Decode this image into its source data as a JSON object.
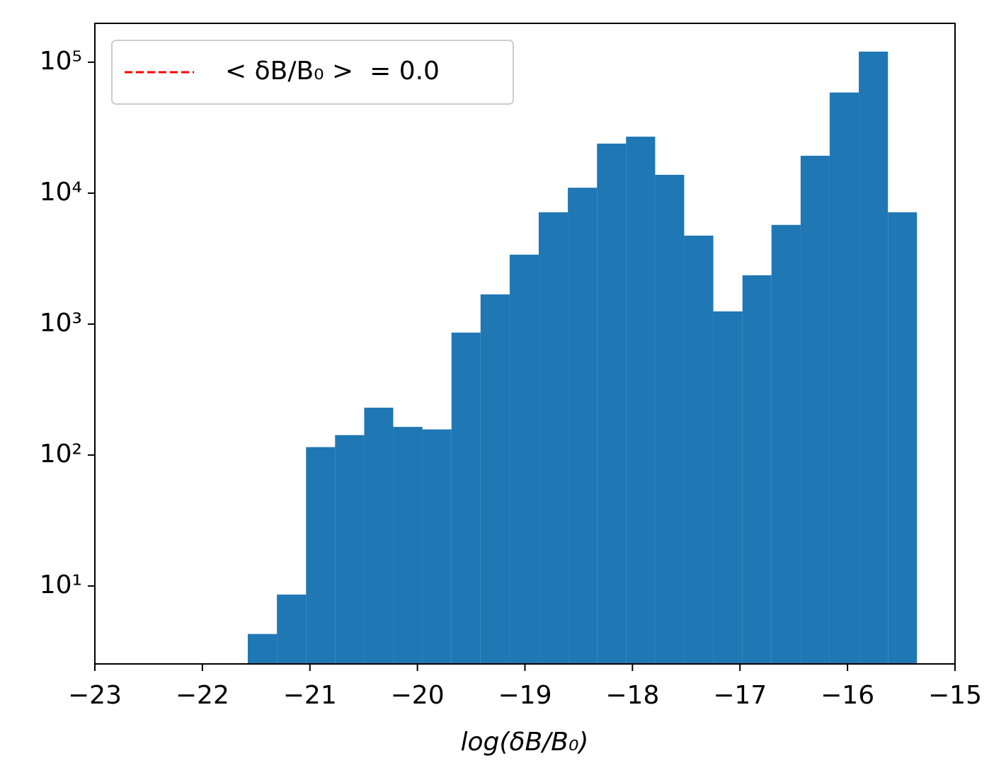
{
  "chart_data": {
    "type": "histogram",
    "x_label": "log(δB/B₀)",
    "bins": [
      -21.578,
      -21.307,
      -21.036,
      -20.766,
      -20.495,
      -20.225,
      -19.954,
      -19.683,
      -19.413,
      -19.142,
      -18.872,
      -18.601,
      -18.33,
      -18.06,
      -17.789,
      -17.519,
      -17.248,
      -16.977,
      -16.707,
      -16.436,
      -16.166,
      -15.895,
      -15.624,
      -15.354
    ],
    "values": [
      4.3,
      8.6,
      115,
      142,
      230,
      164,
      157,
      861,
      1686,
      3390,
      7140,
      11000,
      23900,
      27000,
      13800,
      4740,
      1250,
      2360,
      5720,
      19300,
      58700,
      120500,
      7140
    ],
    "color": "#1f77b4",
    "xlim": [
      -23,
      -15
    ],
    "xticks": [
      {
        "value": -23,
        "label": "−23"
      },
      {
        "value": -22,
        "label": "−22"
      },
      {
        "value": -21,
        "label": "−21"
      },
      {
        "value": -20,
        "label": "−20"
      },
      {
        "value": -19,
        "label": "−19"
      },
      {
        "value": -18,
        "label": "−18"
      },
      {
        "value": -17,
        "label": "−17"
      },
      {
        "value": -16,
        "label": "−16"
      },
      {
        "value": -15,
        "label": "−15"
      }
    ],
    "ylim": [
      2.54,
      198000
    ],
    "yscale": "log",
    "yticks": [
      {
        "value": 10,
        "label": "10¹"
      },
      {
        "value": 100,
        "label": "10²"
      },
      {
        "value": 1000,
        "label": "10³"
      },
      {
        "value": 10000,
        "label": "10⁴"
      },
      {
        "value": 100000,
        "label": "10⁵"
      }
    ],
    "legend": {
      "loc": "upper left",
      "entries": [
        {
          "label": "< δB/B₀ >  = 0.0",
          "color": "#ff0000",
          "style": "dashed"
        }
      ]
    }
  }
}
